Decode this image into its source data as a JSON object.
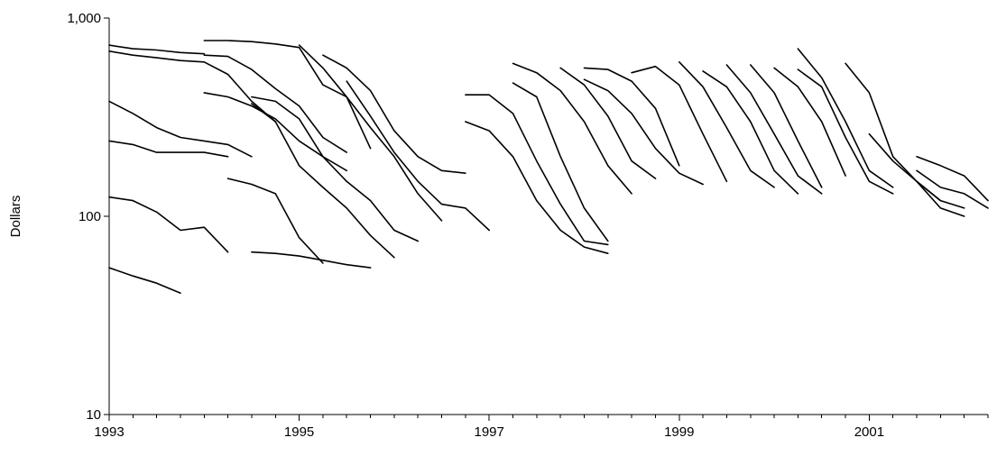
{
  "chart_data": {
    "type": "line",
    "title": "",
    "xlabel": "",
    "ylabel": "Dollars",
    "yscale": "log",
    "ylim": [
      10,
      1000
    ],
    "xlim": [
      1993,
      2002.25
    ],
    "xticks": [
      1993,
      1995,
      1997,
      1999,
      2001
    ],
    "xtick_labels": [
      "1993",
      "1995",
      "1997",
      "1999",
      "2001"
    ],
    "yticks": [
      10,
      100,
      1000
    ],
    "ytick_labels": [
      "10",
      "100",
      "1,000"
    ],
    "x_minor_step": 0.25,
    "grid": false,
    "legend": "none",
    "line_color": "#000000",
    "series": [
      {
        "x": [
          1993.0,
          1993.25,
          1993.5,
          1993.75,
          1994.0
        ],
        "values": [
          730,
          700,
          690,
          670,
          660
        ]
      },
      {
        "x": [
          1993.0,
          1993.25,
          1993.5,
          1993.75,
          1994.0,
          1994.25,
          1994.5,
          1994.75
        ],
        "values": [
          680,
          650,
          630,
          610,
          600,
          520,
          380,
          300
        ]
      },
      {
        "x": [
          1994.0,
          1994.25,
          1994.5,
          1994.75,
          1995.0,
          1995.25,
          1995.5,
          1995.75
        ],
        "values": [
          770,
          770,
          760,
          740,
          710,
          460,
          400,
          220
        ]
      },
      {
        "x": [
          1994.0,
          1994.25,
          1994.5,
          1994.75,
          1995.0,
          1995.25,
          1995.5
        ],
        "values": [
          650,
          640,
          550,
          440,
          360,
          250,
          210
        ]
      },
      {
        "x": [
          1993.0,
          1993.25,
          1993.5,
          1993.75,
          1994.0,
          1994.25,
          1994.5
        ],
        "values": [
          380,
          330,
          280,
          250,
          240,
          230,
          200
        ]
      },
      {
        "x": [
          1993.0,
          1993.25,
          1993.5,
          1993.75,
          1994.0,
          1994.25
        ],
        "values": [
          240,
          230,
          210,
          210,
          210,
          200
        ]
      },
      {
        "x": [
          1993.0,
          1993.25,
          1993.5,
          1993.75,
          1994.0,
          1994.25
        ],
        "values": [
          125,
          120,
          105,
          85,
          88,
          66
        ]
      },
      {
        "x": [
          1993.0,
          1993.25,
          1993.5,
          1993.75
        ],
        "values": [
          55,
          50,
          46,
          41
        ]
      },
      {
        "x": [
          1994.0,
          1994.25,
          1994.5,
          1994.75,
          1995.0,
          1995.25,
          1995.5
        ],
        "values": [
          420,
          400,
          360,
          310,
          240,
          200,
          170
        ]
      },
      {
        "x": [
          1994.25,
          1994.5,
          1994.75,
          1995.0,
          1995.25
        ],
        "values": [
          155,
          145,
          130,
          78,
          58
        ]
      },
      {
        "x": [
          1994.5,
          1994.75,
          1995.0,
          1995.25,
          1995.5,
          1995.75
        ],
        "values": [
          66,
          65,
          63,
          60,
          57,
          55
        ]
      },
      {
        "x": [
          1994.5,
          1994.75,
          1995.0,
          1995.25,
          1995.5,
          1995.75,
          1996.0
        ],
        "values": [
          370,
          300,
          180,
          140,
          110,
          80,
          62
        ]
      },
      {
        "x": [
          1994.5,
          1994.75,
          1995.0,
          1995.25,
          1995.5,
          1995.75,
          1996.0,
          1996.25
        ],
        "values": [
          400,
          380,
          310,
          200,
          150,
          120,
          85,
          75
        ]
      },
      {
        "x": [
          1995.0,
          1995.25,
          1995.5,
          1995.75,
          1996.0,
          1996.25,
          1996.5
        ],
        "values": [
          730,
          560,
          400,
          280,
          200,
          130,
          95
        ]
      },
      {
        "x": [
          1995.25,
          1995.5,
          1995.75,
          1996.0,
          1996.25,
          1996.5,
          1996.75
        ],
        "values": [
          650,
          560,
          430,
          270,
          200,
          170,
          165
        ]
      },
      {
        "x": [
          1995.5,
          1995.75,
          1996.0,
          1996.25,
          1996.5,
          1996.75,
          1997.0
        ],
        "values": [
          480,
          320,
          210,
          150,
          115,
          110,
          85
        ]
      },
      {
        "x": [
          1996.75,
          1997.0,
          1997.25,
          1997.5,
          1997.75,
          1998.0,
          1998.25
        ],
        "values": [
          410,
          410,
          330,
          190,
          115,
          75,
          72
        ]
      },
      {
        "x": [
          1996.75,
          1997.0,
          1997.25,
          1997.5,
          1997.75,
          1998.0,
          1998.25
        ],
        "values": [
          300,
          270,
          200,
          120,
          85,
          70,
          65
        ]
      },
      {
        "x": [
          1997.25,
          1997.5,
          1997.75,
          1998.0,
          1998.25,
          1998.5
        ],
        "values": [
          590,
          530,
          430,
          300,
          180,
          130
        ]
      },
      {
        "x": [
          1997.25,
          1997.5,
          1997.75,
          1998.0,
          1998.25
        ],
        "values": [
          470,
          400,
          200,
          110,
          75
        ]
      },
      {
        "x": [
          1997.75,
          1998.0,
          1998.25,
          1998.5,
          1998.75
        ],
        "values": [
          560,
          460,
          320,
          190,
          155
        ]
      },
      {
        "x": [
          1998.0,
          1998.25,
          1998.5,
          1998.75,
          1999.0
        ],
        "values": [
          560,
          550,
          480,
          350,
          180
        ]
      },
      {
        "x": [
          1998.0,
          1998.25,
          1998.5,
          1998.75,
          1999.0,
          1999.25
        ],
        "values": [
          490,
          430,
          330,
          220,
          165,
          145
        ]
      },
      {
        "x": [
          1998.5,
          1998.75,
          1999.0,
          1999.25,
          1999.5
        ],
        "values": [
          530,
          570,
          460,
          260,
          150
        ]
      },
      {
        "x": [
          1999.0,
          1999.25,
          1999.5,
          1999.75,
          2000.0
        ],
        "values": [
          600,
          450,
          280,
          170,
          140
        ]
      },
      {
        "x": [
          1999.25,
          1999.5,
          1999.75,
          2000.0,
          2000.25
        ],
        "values": [
          540,
          450,
          300,
          170,
          130
        ]
      },
      {
        "x": [
          1999.5,
          1999.75,
          2000.0,
          2000.25,
          2000.5
        ],
        "values": [
          580,
          420,
          260,
          160,
          130
        ]
      },
      {
        "x": [
          1999.75,
          2000.0,
          2000.25,
          2000.5
        ],
        "values": [
          580,
          420,
          240,
          140
        ]
      },
      {
        "x": [
          2000.0,
          2000.25,
          2000.5,
          2000.75
        ],
        "values": [
          560,
          450,
          300,
          160
        ]
      },
      {
        "x": [
          2000.25,
          2000.5,
          2000.75,
          2001.0,
          2001.25
        ],
        "values": [
          700,
          500,
          300,
          170,
          140
        ]
      },
      {
        "x": [
          2000.25,
          2000.5,
          2000.75,
          2001.0,
          2001.25
        ],
        "values": [
          550,
          450,
          250,
          150,
          130
        ]
      },
      {
        "x": [
          2000.75,
          2001.0,
          2001.25,
          2001.5,
          2001.75
        ],
        "values": [
          590,
          420,
          200,
          150,
          120
        ]
      },
      {
        "x": [
          2001.0,
          2001.25,
          2001.5,
          2001.75,
          2002.0
        ],
        "values": [
          260,
          190,
          150,
          120,
          110
        ]
      },
      {
        "x": [
          2001.5,
          2001.75,
          2002.0,
          2002.25
        ],
        "values": [
          200,
          180,
          160,
          120
        ]
      },
      {
        "x": [
          2001.5,
          2001.75,
          2002.0,
          2002.25
        ],
        "values": [
          170,
          140,
          130,
          110
        ]
      },
      {
        "x": [
          2001.5,
          2001.75,
          2002.0
        ],
        "values": [
          150,
          110,
          100
        ]
      }
    ]
  }
}
